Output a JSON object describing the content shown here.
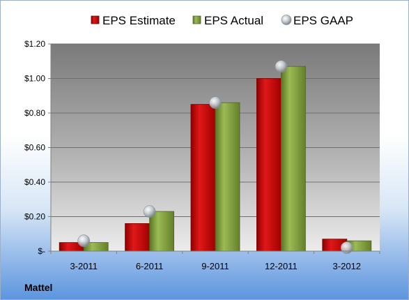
{
  "company": "Mattel",
  "chart_data": {
    "type": "bar",
    "categories": [
      "3-2011",
      "6-2011",
      "9-2011",
      "12-2011",
      "3-2012"
    ],
    "series": [
      {
        "name": "EPS Estimate",
        "kind": "bar",
        "color": "#c00000",
        "values": [
          0.05,
          0.16,
          0.85,
          1.0,
          0.07
        ]
      },
      {
        "name": "EPS Actual",
        "kind": "bar",
        "color": "#7a9a35",
        "values": [
          0.05,
          0.23,
          0.86,
          1.07,
          0.06
        ]
      },
      {
        "name": "EPS GAAP",
        "kind": "marker",
        "color": "#b8c0c8",
        "values": [
          0.06,
          0.23,
          0.86,
          1.07,
          0.02
        ]
      }
    ],
    "ylim": [
      0,
      1.2
    ],
    "yticks": [
      {
        "value": 0,
        "label": "$-"
      },
      {
        "value": 0.2,
        "label": "$0.20"
      },
      {
        "value": 0.4,
        "label": "$0.40"
      },
      {
        "value": 0.6,
        "label": "$0.60"
      },
      {
        "value": 0.8,
        "label": "$0.80"
      },
      {
        "value": 1.0,
        "label": "$1.00"
      },
      {
        "value": 1.2,
        "label": "$1.20"
      }
    ],
    "grid": true,
    "legend_position": "top"
  }
}
